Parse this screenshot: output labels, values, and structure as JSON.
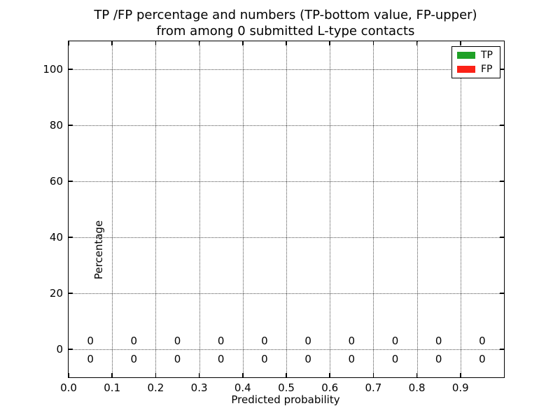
{
  "chart_data": {
    "type": "bar",
    "title_line1": "TP /FP percentage and numbers (TP-bottom value, FP-upper)",
    "title_line2": "from among 0 submitted L-type contacts",
    "xlabel": "Predicted probability",
    "ylabel": "Percentage",
    "xlim": [
      0.0,
      1.0
    ],
    "ylim": [
      -10,
      110
    ],
    "x_ticks": [
      0.0,
      0.1,
      0.2,
      0.3,
      0.4,
      0.5,
      0.6,
      0.7,
      0.8,
      0.9
    ],
    "x_tick_labels": [
      "0.0",
      "0.1",
      "0.2",
      "0.3",
      "0.4",
      "0.5",
      "0.6",
      "0.7",
      "0.8",
      "0.9"
    ],
    "y_ticks": [
      0,
      20,
      40,
      60,
      80,
      100
    ],
    "y_tick_labels": [
      "0",
      "20",
      "40",
      "60",
      "80",
      "100"
    ],
    "grid": {
      "style": "dotted",
      "color": "#4d4d4d",
      "x_lines": [
        0.1,
        0.2,
        0.3,
        0.4,
        0.5,
        0.6,
        0.7,
        0.8,
        0.9
      ],
      "y_lines": [
        0,
        20,
        40,
        60,
        80,
        100
      ]
    },
    "bin_centers": [
      0.05,
      0.15,
      0.25,
      0.35,
      0.45,
      0.55,
      0.65,
      0.75,
      0.85,
      0.95
    ],
    "series": [
      {
        "name": "TP",
        "color": "#1fa127",
        "values": [
          0,
          0,
          0,
          0,
          0,
          0,
          0,
          0,
          0,
          0
        ]
      },
      {
        "name": "FP",
        "color": "#fb2217",
        "values": [
          0,
          0,
          0,
          0,
          0,
          0,
          0,
          0,
          0,
          0
        ]
      }
    ],
    "annotations": {
      "fp_labels": [
        "0",
        "0",
        "0",
        "0",
        "0",
        "0",
        "0",
        "0",
        "0",
        "0"
      ],
      "fp_y": 3,
      "tp_labels": [
        "0",
        "0",
        "0",
        "0",
        "0",
        "0",
        "0",
        "0",
        "0",
        "0"
      ],
      "tp_y": -3.5
    },
    "legend": {
      "position": "upper right",
      "entries": [
        {
          "label": "TP",
          "color": "#1fa127"
        },
        {
          "label": "FP",
          "color": "#fb2217"
        }
      ]
    },
    "axis_color": "#000000",
    "background": "#ffffff"
  }
}
